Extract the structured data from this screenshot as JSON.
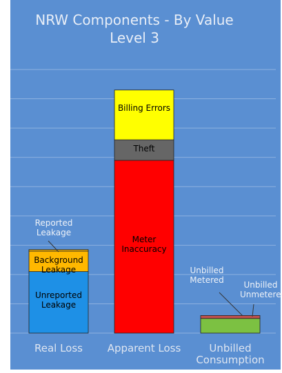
{
  "chart_data": {
    "type": "stacked_bar",
    "title": "NRW Components - By Value",
    "subtitle": "Level 3",
    "categories": [
      "Real Loss",
      "Apparent Loss",
      "Unbilled Consumption"
    ],
    "series": [
      {
        "name": "Unreported Leakage",
        "color": "#1e90e6",
        "values": [
          2.1,
          null,
          null
        ]
      },
      {
        "name": "Background Leakage",
        "color": "#ffb800",
        "values": [
          0.7,
          null,
          null
        ]
      },
      {
        "name": "Reported Leakage",
        "color": "#ffb800",
        "values": [
          0.05,
          null,
          null
        ]
      },
      {
        "name": "Meter Inaccuracy",
        "color": "#ff0000",
        "values": [
          null,
          5.9,
          null
        ]
      },
      {
        "name": "Theft",
        "color": "#666666",
        "values": [
          null,
          0.7,
          null
        ]
      },
      {
        "name": "Billing Errors",
        "color": "#ffff00",
        "values": [
          null,
          1.7,
          null
        ]
      },
      {
        "name": "Unbilled Metered",
        "color": "#7cc142",
        "values": [
          null,
          null,
          0.5
        ]
      },
      {
        "name": "Unbilled Unmetered",
        "color": "#c0504d",
        "values": [
          null,
          null,
          0.1
        ]
      }
    ],
    "ylim": [
      0,
      9
    ],
    "yticks": [
      0,
      1,
      2,
      3,
      4,
      5,
      6,
      7,
      8,
      9
    ],
    "grid": true
  }
}
